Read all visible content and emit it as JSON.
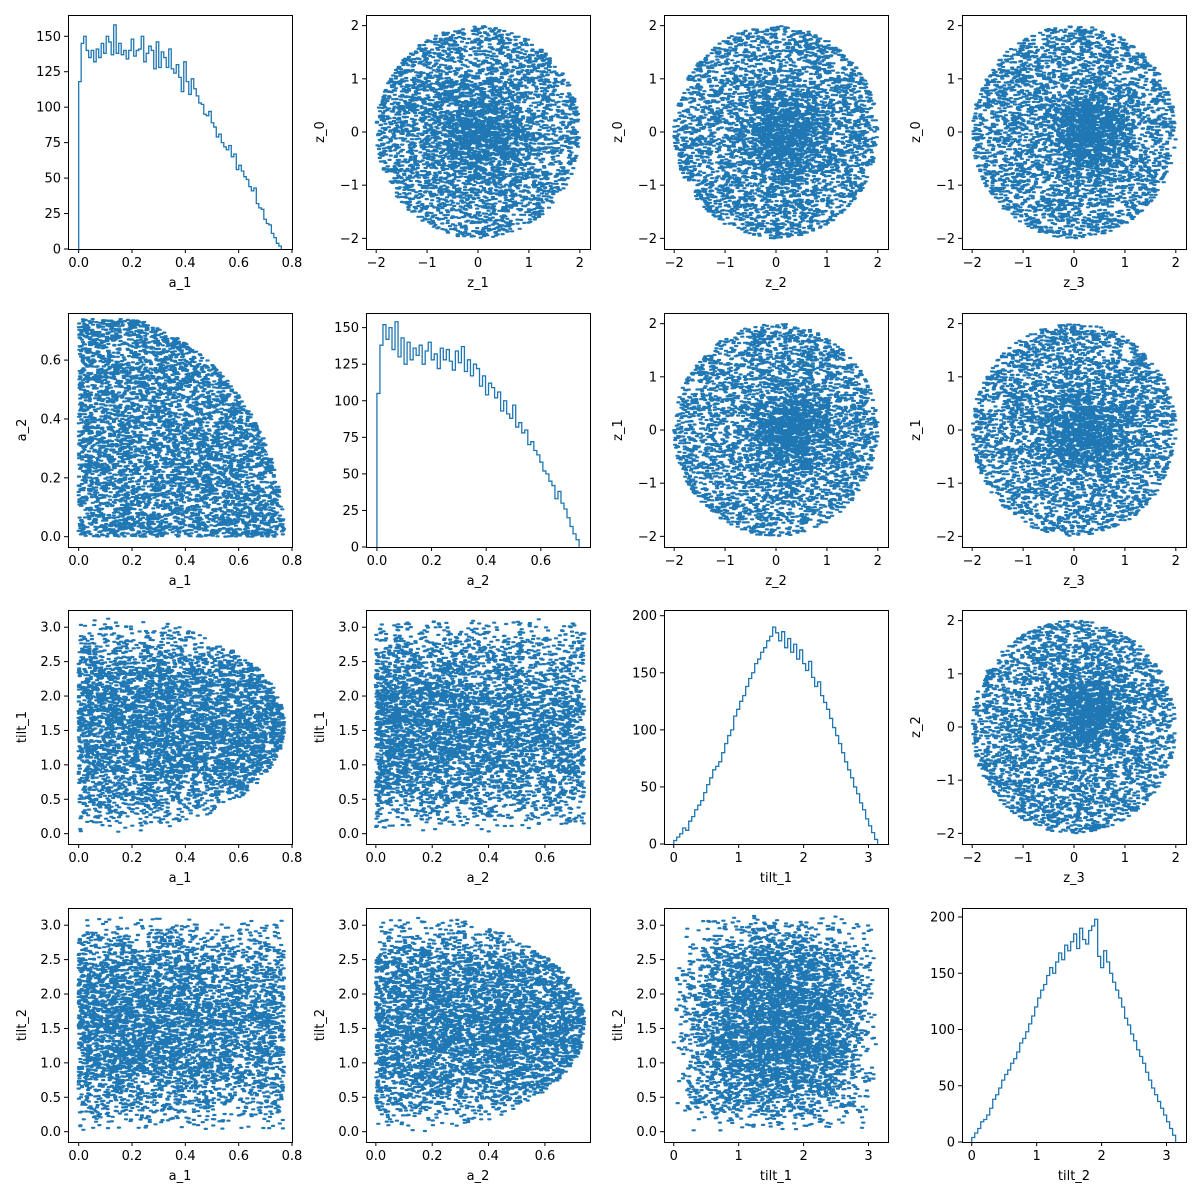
{
  "figure": {
    "style": {
      "color": "#1f77b4",
      "background": "#ffffff",
      "axis_color": "#000000"
    }
  },
  "chart_data": [
    {
      "type": "histogram",
      "row": 0,
      "col": 0,
      "xlabel": "a_1",
      "ylabel": "",
      "xlim": [
        -0.04,
        0.8
      ],
      "ylim": [
        0,
        165
      ],
      "xticks": [
        0.0,
        0.2,
        0.4,
        0.6,
        0.8
      ],
      "xtick_labels": [
        "0.0",
        "0.2",
        "0.4",
        "0.6",
        "0.8"
      ],
      "yticks": [
        0,
        25,
        50,
        75,
        100,
        125,
        150
      ],
      "ytick_labels": [
        "0",
        "25",
        "50",
        "75",
        "100",
        "125",
        "150"
      ],
      "bin_range": [
        0,
        0.76
      ],
      "counts": [
        118,
        145,
        150,
        140,
        135,
        140,
        132,
        141,
        135,
        145,
        138,
        150,
        146,
        137,
        158,
        138,
        145,
        137,
        140,
        134,
        140,
        148,
        136,
        140,
        141,
        150,
        132,
        138,
        143,
        140,
        127,
        146,
        128,
        139,
        135,
        128,
        141,
        127,
        124,
        130,
        121,
        111,
        132,
        118,
        109,
        120,
        113,
        108,
        103,
        102,
        95,
        94,
        97,
        89,
        86,
        79,
        81,
        75,
        72,
        70,
        73,
        65,
        67,
        56,
        59,
        55,
        51,
        49,
        44,
        41,
        43,
        32,
        29,
        28,
        21,
        18,
        17,
        11,
        8,
        4,
        2
      ]
    },
    {
      "type": "scatter",
      "row": 0,
      "col": 1,
      "xlabel": "z_1",
      "ylabel": "z_0",
      "xlim": [
        -2.2,
        2.2
      ],
      "ylim": [
        -2.2,
        2.2
      ],
      "xticks": [
        -2,
        -1,
        0,
        1,
        2
      ],
      "xtick_labels": [
        "−2",
        "−1",
        "0",
        "1",
        "2"
      ],
      "yticks": [
        -2,
        -1,
        0,
        1,
        2
      ],
      "ytick_labels": [
        "−2",
        "−1",
        "0",
        "1",
        "2"
      ],
      "distribution": {
        "kind": "disk",
        "radius": 2,
        "center": [
          0,
          0
        ],
        "core": [
          0,
          0,
          0.5
        ],
        "n": 4500
      }
    },
    {
      "type": "scatter",
      "row": 0,
      "col": 2,
      "xlabel": "z_2",
      "ylabel": "z_0",
      "xlim": [
        -2.2,
        2.2
      ],
      "ylim": [
        -2.2,
        2.2
      ],
      "xticks": [
        -2,
        -1,
        0,
        1,
        2
      ],
      "xtick_labels": [
        "−2",
        "−1",
        "0",
        "1",
        "2"
      ],
      "yticks": [
        -2,
        -1,
        0,
        1,
        2
      ],
      "ytick_labels": [
        "−2",
        "−1",
        "0",
        "1",
        "2"
      ],
      "distribution": {
        "kind": "disk",
        "radius": 2,
        "center": [
          0,
          0
        ],
        "core": [
          0.2,
          0,
          0.45
        ],
        "n": 4500
      }
    },
    {
      "type": "scatter",
      "row": 0,
      "col": 3,
      "xlabel": "z_3",
      "ylabel": "z_0",
      "xlim": [
        -2.2,
        2.2
      ],
      "ylim": [
        -2.2,
        2.2
      ],
      "xticks": [
        -2,
        -1,
        0,
        1,
        2
      ],
      "xtick_labels": [
        "−2",
        "−1",
        "0",
        "1",
        "2"
      ],
      "yticks": [
        -2,
        -1,
        0,
        1,
        2
      ],
      "ytick_labels": [
        "−2",
        "−1",
        "0",
        "1",
        "2"
      ],
      "distribution": {
        "kind": "disk",
        "radius": 2,
        "center": [
          0,
          0
        ],
        "core": [
          0.3,
          0,
          0.4
        ],
        "n": 4500
      }
    },
    {
      "type": "scatter",
      "row": 1,
      "col": 0,
      "xlabel": "a_1",
      "ylabel": "a_2",
      "xlim": [
        -0.04,
        0.8
      ],
      "ylim": [
        -0.035,
        0.76
      ],
      "xticks": [
        0.0,
        0.2,
        0.4,
        0.6,
        0.8
      ],
      "xtick_labels": [
        "0.0",
        "0.2",
        "0.4",
        "0.6",
        "0.8"
      ],
      "yticks": [
        0.0,
        0.2,
        0.4,
        0.6
      ],
      "ytick_labels": [
        "0.0",
        "0.2",
        "0.4",
        "0.6"
      ],
      "distribution": {
        "kind": "quarter_disk",
        "radius": 0.77,
        "ymax": 0.74,
        "n": 5000
      }
    },
    {
      "type": "histogram",
      "row": 1,
      "col": 1,
      "xlabel": "a_2",
      "ylabel": "",
      "xlim": [
        -0.04,
        0.78
      ],
      "ylim": [
        0,
        160
      ],
      "xticks": [
        0.0,
        0.2,
        0.4,
        0.6
      ],
      "xtick_labels": [
        "0.0",
        "0.2",
        "0.4",
        "0.6"
      ],
      "yticks": [
        0,
        25,
        50,
        75,
        100,
        125,
        150
      ],
      "ytick_labels": [
        "0",
        "25",
        "50",
        "75",
        "100",
        "125",
        "150"
      ],
      "bin_range": [
        0,
        0.74
      ],
      "counts": [
        105,
        138,
        152,
        142,
        150,
        135,
        154,
        130,
        143,
        125,
        140,
        128,
        136,
        131,
        138,
        125,
        134,
        140,
        128,
        132,
        122,
        136,
        128,
        135,
        127,
        121,
        134,
        126,
        137,
        120,
        128,
        117,
        125,
        122,
        110,
        117,
        104,
        112,
        109,
        102,
        106,
        93,
        100,
        91,
        88,
        97,
        82,
        85,
        78,
        80,
        70,
        72,
        66,
        63,
        58,
        52,
        50,
        45,
        42,
        33,
        38,
        30,
        26,
        20,
        14,
        9,
        5
      ]
    },
    {
      "type": "scatter",
      "row": 1,
      "col": 2,
      "xlabel": "z_2",
      "ylabel": "z_1",
      "xlim": [
        -2.2,
        2.2
      ],
      "ylim": [
        -2.2,
        2.2
      ],
      "xticks": [
        -2,
        -1,
        0,
        1,
        2
      ],
      "xtick_labels": [
        "−2",
        "−1",
        "0",
        "1",
        "2"
      ],
      "yticks": [
        -2,
        -1,
        0,
        1,
        2
      ],
      "ytick_labels": [
        "−2",
        "−1",
        "0",
        "1",
        "2"
      ],
      "distribution": {
        "kind": "disk",
        "radius": 2,
        "center": [
          0,
          0
        ],
        "core": [
          0.3,
          0,
          0.4
        ],
        "n": 4500
      }
    },
    {
      "type": "scatter",
      "row": 1,
      "col": 3,
      "xlabel": "z_3",
      "ylabel": "z_1",
      "xlim": [
        -2.2,
        2.2
      ],
      "ylim": [
        -2.2,
        2.2
      ],
      "xticks": [
        -2,
        -1,
        0,
        1,
        2
      ],
      "xtick_labels": [
        "−2",
        "−1",
        "0",
        "1",
        "2"
      ],
      "yticks": [
        -2,
        -1,
        0,
        1,
        2
      ],
      "ytick_labels": [
        "−2",
        "−1",
        "0",
        "1",
        "2"
      ],
      "distribution": {
        "kind": "disk",
        "radius": 2,
        "center": [
          0,
          0
        ],
        "core": [
          0.2,
          0,
          0.45
        ],
        "n": 4500
      }
    },
    {
      "type": "scatter",
      "row": 2,
      "col": 0,
      "xlabel": "a_1",
      "ylabel": "tilt_1",
      "xlim": [
        -0.04,
        0.8
      ],
      "ylim": [
        -0.15,
        3.25
      ],
      "xticks": [
        0.0,
        0.2,
        0.4,
        0.6,
        0.8
      ],
      "xtick_labels": [
        "0.0",
        "0.2",
        "0.4",
        "0.6",
        "0.8"
      ],
      "yticks": [
        0.0,
        0.5,
        1.0,
        1.5,
        2.0,
        2.5,
        3.0
      ],
      "ytick_labels": [
        "0.0",
        "0.5",
        "1.0",
        "1.5",
        "2.0",
        "2.5",
        "3.0"
      ],
      "distribution": {
        "kind": "spin_tilt",
        "xmax": 0.77,
        "n": 5000
      }
    },
    {
      "type": "scatter",
      "row": 2,
      "col": 1,
      "xlabel": "a_2",
      "ylabel": "tilt_1",
      "xlim": [
        -0.035,
        0.76
      ],
      "ylim": [
        -0.15,
        3.25
      ],
      "xticks": [
        0.0,
        0.2,
        0.4,
        0.6
      ],
      "xtick_labels": [
        "0.0",
        "0.2",
        "0.4",
        "0.6"
      ],
      "yticks": [
        0.0,
        0.5,
        1.0,
        1.5,
        2.0,
        2.5,
        3.0
      ],
      "ytick_labels": [
        "0.0",
        "0.5",
        "1.0",
        "1.5",
        "2.0",
        "2.5",
        "3.0"
      ],
      "distribution": {
        "kind": "tilt_vs_a",
        "xmax": 0.74,
        "n": 5000
      }
    },
    {
      "type": "histogram",
      "row": 2,
      "col": 2,
      "xlabel": "tilt_1",
      "ylabel": "",
      "xlim": [
        -0.15,
        3.3
      ],
      "ylim": [
        0,
        205
      ],
      "xticks": [
        0,
        1,
        2,
        3
      ],
      "xtick_labels": [
        "0",
        "1",
        "2",
        "3"
      ],
      "yticks": [
        0,
        50,
        100,
        150,
        200
      ],
      "ytick_labels": [
        "0",
        "50",
        "100",
        "150",
        "200"
      ],
      "bin_range": [
        0,
        3.14
      ],
      "counts": [
        3,
        6,
        9,
        14,
        12,
        20,
        24,
        30,
        34,
        38,
        45,
        52,
        58,
        65,
        68,
        72,
        80,
        88,
        95,
        100,
        112,
        118,
        125,
        130,
        138,
        145,
        150,
        158,
        162,
        168,
        172,
        178,
        182,
        190,
        185,
        178,
        186,
        172,
        180,
        168,
        175,
        162,
        170,
        158,
        152,
        160,
        146,
        138,
        142,
        130,
        124,
        118,
        110,
        102,
        95,
        88,
        80,
        72,
        65,
        58,
        50,
        44,
        36,
        30,
        22,
        16,
        10,
        4
      ]
    },
    {
      "type": "scatter",
      "row": 2,
      "col": 3,
      "xlabel": "z_3",
      "ylabel": "z_2",
      "xlim": [
        -2.2,
        2.2
      ],
      "ylim": [
        -2.2,
        2.2
      ],
      "xticks": [
        -2,
        -1,
        0,
        1,
        2
      ],
      "xtick_labels": [
        "−2",
        "−1",
        "0",
        "1",
        "2"
      ],
      "yticks": [
        -2,
        -1,
        0,
        1,
        2
      ],
      "ytick_labels": [
        "−2",
        "−1",
        "0",
        "1",
        "2"
      ],
      "distribution": {
        "kind": "disk",
        "radius": 2,
        "center": [
          0,
          0
        ],
        "core": [
          0.3,
          0.3,
          0.4
        ],
        "n": 4500
      }
    },
    {
      "type": "scatter",
      "row": 3,
      "col": 0,
      "xlabel": "a_1",
      "ylabel": "tilt_2",
      "xlim": [
        -0.04,
        0.8
      ],
      "ylim": [
        -0.15,
        3.25
      ],
      "xticks": [
        0.0,
        0.2,
        0.4,
        0.6,
        0.8
      ],
      "xtick_labels": [
        "0.0",
        "0.2",
        "0.4",
        "0.6",
        "0.8"
      ],
      "yticks": [
        0.0,
        0.5,
        1.0,
        1.5,
        2.0,
        2.5,
        3.0
      ],
      "ytick_labels": [
        "0.0",
        "0.5",
        "1.0",
        "1.5",
        "2.0",
        "2.5",
        "3.0"
      ],
      "distribution": {
        "kind": "tilt_vs_a",
        "xmax": 0.77,
        "n": 5000
      }
    },
    {
      "type": "scatter",
      "row": 3,
      "col": 1,
      "xlabel": "a_2",
      "ylabel": "tilt_2",
      "xlim": [
        -0.035,
        0.76
      ],
      "ylim": [
        -0.15,
        3.25
      ],
      "xticks": [
        0.0,
        0.2,
        0.4,
        0.6
      ],
      "xtick_labels": [
        "0.0",
        "0.2",
        "0.4",
        "0.6"
      ],
      "yticks": [
        0.0,
        0.5,
        1.0,
        1.5,
        2.0,
        2.5,
        3.0
      ],
      "ytick_labels": [
        "0.0",
        "0.5",
        "1.0",
        "1.5",
        "2.0",
        "2.5",
        "3.0"
      ],
      "distribution": {
        "kind": "spin_tilt",
        "xmax": 0.74,
        "n": 5000
      }
    },
    {
      "type": "scatter",
      "row": 3,
      "col": 2,
      "xlabel": "tilt_1",
      "ylabel": "tilt_2",
      "xlim": [
        -0.15,
        3.3
      ],
      "ylim": [
        -0.15,
        3.25
      ],
      "xticks": [
        0,
        1,
        2,
        3
      ],
      "xtick_labels": [
        "0",
        "1",
        "2",
        "3"
      ],
      "yticks": [
        0.0,
        0.5,
        1.0,
        1.5,
        2.0,
        2.5,
        3.0
      ],
      "ytick_labels": [
        "0.0",
        "0.5",
        "1.0",
        "1.5",
        "2.0",
        "2.5",
        "3.0"
      ],
      "distribution": {
        "kind": "tilt_tilt",
        "n": 5000
      }
    },
    {
      "type": "histogram",
      "row": 3,
      "col": 3,
      "xlabel": "tilt_2",
      "ylabel": "",
      "xlim": [
        -0.15,
        3.3
      ],
      "ylim": [
        0,
        208
      ],
      "xticks": [
        0,
        1,
        2,
        3
      ],
      "xtick_labels": [
        "0",
        "1",
        "2",
        "3"
      ],
      "yticks": [
        0,
        50,
        100,
        150,
        200
      ],
      "ytick_labels": [
        "0",
        "50",
        "100",
        "150",
        "200"
      ],
      "bin_range": [
        0,
        3.14
      ],
      "counts": [
        4,
        8,
        12,
        18,
        20,
        24,
        30,
        38,
        42,
        48,
        55,
        60,
        64,
        70,
        74,
        80,
        88,
        92,
        98,
        105,
        112,
        120,
        128,
        135,
        140,
        148,
        155,
        150,
        160,
        168,
        162,
        175,
        170,
        178,
        185,
        172,
        190,
        180,
        176,
        188,
        192,
        198,
        165,
        155,
        170,
        160,
        150,
        142,
        135,
        128,
        120,
        110,
        104,
        96,
        90,
        82,
        76,
        70,
        62,
        55,
        48,
        42,
        36,
        30,
        24,
        18,
        12,
        6
      ]
    }
  ]
}
